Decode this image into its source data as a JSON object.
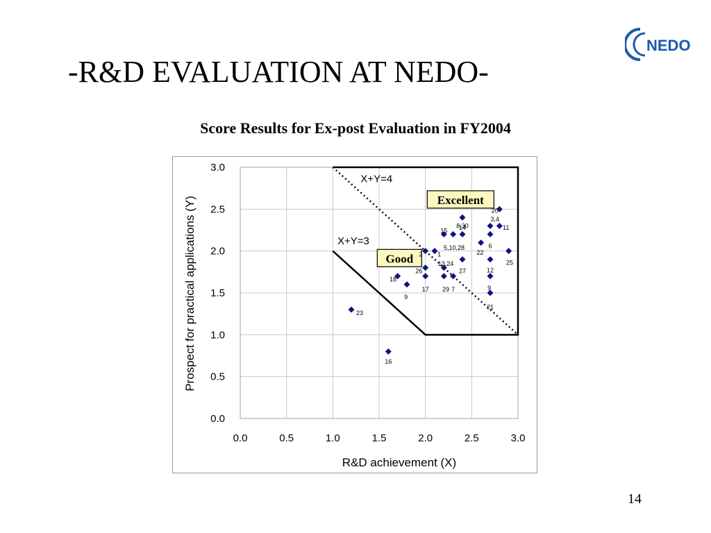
{
  "slide": {
    "title": "-R&D EVALUATION AT NEDO-",
    "logo_text": "NEDO",
    "page_number": "14"
  },
  "colors": {
    "logo_blue": "#1a5aa8",
    "marker": "#0a1580",
    "label_box": "#fff7c0"
  },
  "chart_data": {
    "type": "scatter",
    "title": "Score Results for Ex-post Evaluation in FY2004",
    "xlabel": "R&D achievement (X)",
    "ylabel": "Prospect for practical applications (Y)",
    "xlim": [
      0,
      3
    ],
    "ylim": [
      0,
      3
    ],
    "x_ticks": [
      "0.0",
      "0.5",
      "1.0",
      "1.5",
      "2.0",
      "2.5",
      "3.0"
    ],
    "y_ticks": [
      "0.0",
      "0.5",
      "1.0",
      "1.5",
      "2.0",
      "2.5",
      "3.0"
    ],
    "grid": true,
    "points": [
      {
        "x": 2.8,
        "y": 2.5
      },
      {
        "x": 2.7,
        "y": 2.3
      },
      {
        "x": 2.8,
        "y": 2.3
      },
      {
        "x": 2.4,
        "y": 2.4
      },
      {
        "x": 2.2,
        "y": 2.2
      },
      {
        "x": 2.3,
        "y": 2.2
      },
      {
        "x": 2.4,
        "y": 2.2
      },
      {
        "x": 2.7,
        "y": 2.2
      },
      {
        "x": 2.6,
        "y": 2.1
      },
      {
        "x": 2.0,
        "y": 2.0
      },
      {
        "x": 2.1,
        "y": 2.0
      },
      {
        "x": 2.9,
        "y": 2.0
      },
      {
        "x": 2.4,
        "y": 1.9
      },
      {
        "x": 2.7,
        "y": 1.9
      },
      {
        "x": 2.0,
        "y": 1.8
      },
      {
        "x": 2.2,
        "y": 1.8
      },
      {
        "x": 1.7,
        "y": 1.7
      },
      {
        "x": 2.0,
        "y": 1.7
      },
      {
        "x": 2.2,
        "y": 1.7
      },
      {
        "x": 2.3,
        "y": 1.7
      },
      {
        "x": 2.7,
        "y": 1.7
      },
      {
        "x": 1.8,
        "y": 1.6
      },
      {
        "x": 2.7,
        "y": 1.5
      },
      {
        "x": 1.2,
        "y": 1.3
      },
      {
        "x": 1.6,
        "y": 0.8
      }
    ],
    "point_labels": [
      {
        "text": "20",
        "x": 2.75,
        "y": 2.48
      },
      {
        "text": "3,4",
        "x": 2.75,
        "y": 2.38
      },
      {
        "text": "11",
        "x": 2.87,
        "y": 2.28
      },
      {
        "text": "14",
        "x": 2.4,
        "y": 2.28
      },
      {
        "text": "15",
        "x": 2.2,
        "y": 2.24
      },
      {
        "text": "8,30",
        "x": 2.4,
        "y": 2.3
      },
      {
        "text": "5,10,28",
        "x": 2.31,
        "y": 2.04
      },
      {
        "text": "6",
        "x": 2.7,
        "y": 2.06
      },
      {
        "text": "22",
        "x": 2.59,
        "y": 1.98
      },
      {
        "text": "25",
        "x": 2.91,
        "y": 1.86
      },
      {
        "text": "2",
        "x": 1.95,
        "y": 1.96
      },
      {
        "text": "1",
        "x": 2.15,
        "y": 1.96
      },
      {
        "text": "13,24",
        "x": 2.22,
        "y": 1.85
      },
      {
        "text": "26",
        "x": 1.93,
        "y": 1.76
      },
      {
        "text": "27",
        "x": 2.4,
        "y": 1.76
      },
      {
        "text": "12",
        "x": 2.7,
        "y": 1.77
      },
      {
        "text": "18",
        "x": 1.65,
        "y": 1.66
      },
      {
        "text": "17",
        "x": 2.0,
        "y": 1.54
      },
      {
        "text": "29",
        "x": 2.22,
        "y": 1.54
      },
      {
        "text": "7",
        "x": 2.3,
        "y": 1.54
      },
      {
        "text": "9",
        "x": 2.69,
        "y": 1.56
      },
      {
        "text": "9",
        "x": 1.79,
        "y": 1.45
      },
      {
        "text": "21",
        "x": 2.7,
        "y": 1.33
      },
      {
        "text": "23",
        "x": 1.29,
        "y": 1.26
      },
      {
        "text": "16",
        "x": 1.6,
        "y": 0.68
      }
    ],
    "annotations": {
      "line_x4": {
        "label": "X+Y=4",
        "from": [
          1.0,
          3.0
        ],
        "to": [
          3.0,
          1.0
        ],
        "label_pos": [
          1.3,
          2.82
        ]
      },
      "line_x3": {
        "label": "X+Y=3",
        "label_pos": [
          1.05,
          2.08
        ]
      },
      "region_boundary": [
        [
          1.0,
          3.0
        ],
        [
          2.0,
          3.0
        ],
        [
          3.0,
          3.0
        ],
        [
          3.0,
          1.0
        ],
        [
          2.0,
          1.0
        ],
        [
          1.0,
          2.0
        ]
      ],
      "excellent": {
        "label": "Excellent",
        "at": [
          2.02,
          2.57
        ]
      },
      "good": {
        "label": "Good",
        "at": [
          1.48,
          1.87
        ]
      }
    }
  }
}
